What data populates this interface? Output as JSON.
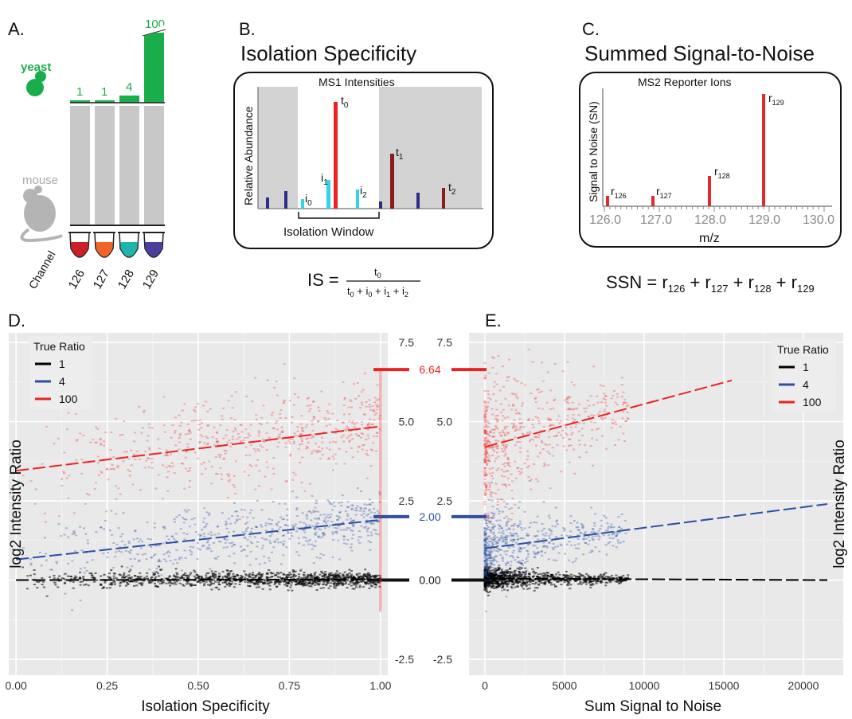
{
  "panels": {
    "a": {
      "label": "A.",
      "yeast_label": "yeast",
      "mouse_label": "mouse",
      "channel_label": "Channel",
      "channels": [
        "126",
        "127",
        "128",
        "129"
      ],
      "yeast_amounts": [
        "1",
        "1",
        "4",
        "100"
      ],
      "tube_colors": [
        "#cc1f2a",
        "#f0642a",
        "#1fb5ac",
        "#4a3f9f"
      ],
      "yeast_color": "#1aad4b"
    },
    "b": {
      "label": "B.",
      "title": "Isolation Specificity",
      "box_title": "MS1 Intensities",
      "ylabel": "Relative Abundance",
      "window_label": "Isolation Window",
      "peaks": [
        "t",
        "i",
        "i",
        "i",
        "t",
        "t"
      ],
      "peak_subs": [
        "0",
        "0",
        "1",
        "2",
        "1",
        "2"
      ],
      "formula_lhs": "IS =",
      "numerator": "t",
      "numerator_sub": "0",
      "denominator": [
        [
          "t",
          "0"
        ],
        [
          "i",
          "0"
        ],
        [
          "i",
          "1"
        ],
        [
          "i",
          "2"
        ]
      ]
    },
    "c": {
      "label": "C.",
      "title": "Summed Signal-to-Noise",
      "box_title": "MS2 Reporter Ions",
      "ylabel": "Signal to Noise (SN)",
      "xlabel": "m/z",
      "ticks": [
        "126.0",
        "127.0",
        "128.0",
        "129.0",
        "130.0"
      ],
      "reporters": [
        [
          "r",
          "126"
        ],
        [
          "r",
          "127"
        ],
        [
          "r",
          "128"
        ],
        [
          "r",
          "129"
        ]
      ],
      "formula_lhs": "SSN =",
      "formula_terms": [
        [
          "r",
          "126"
        ],
        [
          "r",
          "127"
        ],
        [
          "r",
          "128"
        ],
        [
          "r",
          "129"
        ]
      ]
    },
    "d": {
      "label": "D."
    },
    "e": {
      "label": "E."
    }
  },
  "middle_labels": [
    {
      "text": "6.64",
      "color": "#ee2222"
    },
    {
      "text": "2.00",
      "color": "#2c4fa3"
    },
    {
      "text": "0.00",
      "color": "#111111"
    }
  ],
  "chart_data": [
    {
      "type": "scatter",
      "xlabel": "Isolation Specificity",
      "ylabel": "log2 Intensity Ratio",
      "xlim": [
        -0.02,
        1.02
      ],
      "ylim": [
        -3.0,
        7.8
      ],
      "xticks": [
        "0.00",
        "0.25",
        "0.50",
        "0.75",
        "1.00"
      ],
      "yticks": [
        "-2.5",
        "2.5",
        "5.0",
        "7.5"
      ],
      "legend_title": "True Ratio",
      "legend_position": "top-left",
      "series": [
        {
          "name": "1",
          "color": "#000000",
          "trend_x": [
            0.0,
            1.0
          ],
          "trend_y": [
            0.0,
            0.02
          ]
        },
        {
          "name": "4",
          "color": "#2c4fa3",
          "trend_x": [
            0.0,
            1.0
          ],
          "trend_y": [
            0.65,
            1.9
          ]
        },
        {
          "name": "100",
          "color": "#ee2222",
          "trend_x": [
            0.0,
            1.0
          ],
          "trend_y": [
            3.45,
            4.85
          ]
        }
      ]
    },
    {
      "type": "scatter",
      "xlabel": "Sum Signal to Noise",
      "ylabel": "log2 Intensity Ratio",
      "xlim": [
        -1000,
        22500
      ],
      "ylim": [
        -3.0,
        7.8
      ],
      "xticks": [
        "0",
        "5000",
        "10000",
        "15000",
        "20000"
      ],
      "yticks": [
        "-2.5",
        "2.5",
        "5.0",
        "7.5"
      ],
      "legend_title": "True Ratio",
      "legend_position": "top-right",
      "series": [
        {
          "name": "1",
          "color": "#000000",
          "trend_x": [
            0,
            21500
          ],
          "trend_y": [
            0.05,
            0.0
          ]
        },
        {
          "name": "4",
          "color": "#2c4fa3",
          "trend_x": [
            0,
            21500
          ],
          "trend_y": [
            1.0,
            2.4
          ]
        },
        {
          "name": "100",
          "color": "#ee2222",
          "trend_x": [
            0,
            15500
          ],
          "trend_y": [
            4.2,
            6.3
          ]
        }
      ]
    }
  ]
}
